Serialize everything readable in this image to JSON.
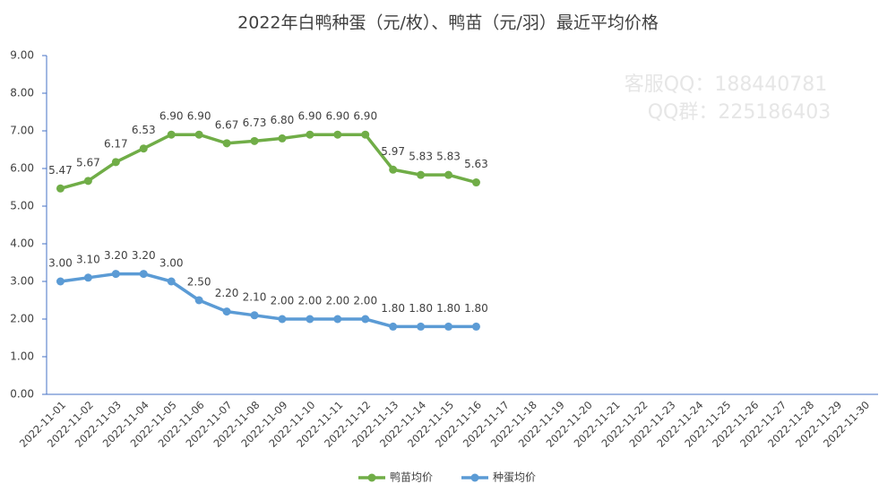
{
  "chart_data": {
    "type": "line",
    "title": "2022年白鸭种蛋（元/枚）、鸭苗（元/羽）最近平均价格",
    "watermarks": [
      "客服QQ：188440781",
      "QQ群：225186403"
    ],
    "categories": [
      "2022-11-01",
      "2022-11-02",
      "2022-11-03",
      "2022-11-04",
      "2022-11-05",
      "2022-11-06",
      "2022-11-07",
      "2022-11-08",
      "2022-11-09",
      "2022-11-10",
      "2022-11-11",
      "2022-11-12",
      "2022-11-13",
      "2022-11-14",
      "2022-11-15",
      "2022-11-16",
      "2022-11-17",
      "2022-11-18",
      "2022-11-19",
      "2022-11-20",
      "2022-11-21",
      "2022-11-22",
      "2022-11-23",
      "2022-11-24",
      "2022-11-25",
      "2022-11-26",
      "2022-11-27",
      "2022-11-28",
      "2022-11-29",
      "2022-11-30"
    ],
    "series": [
      {
        "name": "鸭苗均价",
        "color": "#70ad47",
        "values": [
          5.47,
          5.67,
          6.17,
          6.53,
          6.9,
          6.9,
          6.67,
          6.73,
          6.8,
          6.9,
          6.9,
          6.9,
          5.97,
          5.83,
          5.83,
          5.63,
          null,
          null,
          null,
          null,
          null,
          null,
          null,
          null,
          null,
          null,
          null,
          null,
          null,
          null
        ],
        "value_labels": [
          "5.47",
          "5.67",
          "6.17",
          "6.53",
          "6.90",
          "6.90",
          "6.67",
          "6.73",
          "6.80",
          "6.90",
          "6.90",
          "6.90",
          "5.97",
          "5.83",
          "5.83",
          "5.63",
          null,
          null,
          null,
          null,
          null,
          null,
          null,
          null,
          null,
          null,
          null,
          null,
          null,
          null
        ]
      },
      {
        "name": "种蛋均价",
        "color": "#5b9bd5",
        "values": [
          3.0,
          3.1,
          3.2,
          3.2,
          3.0,
          2.5,
          2.2,
          2.1,
          2.0,
          2.0,
          2.0,
          2.0,
          1.8,
          1.8,
          1.8,
          1.8,
          null,
          null,
          null,
          null,
          null,
          null,
          null,
          null,
          null,
          null,
          null,
          null,
          null,
          null
        ],
        "value_labels": [
          "3.00",
          "3.10",
          "3.20",
          "3.20",
          "3.00",
          "2.50",
          "2.20",
          "2.10",
          "2.00",
          "2.00",
          "2.00",
          "2.00",
          "1.80",
          "1.80",
          "1.80",
          "1.80",
          null,
          null,
          null,
          null,
          null,
          null,
          null,
          null,
          null,
          null,
          null,
          null,
          null,
          null
        ]
      }
    ],
    "ylim": [
      0,
      9
    ],
    "yticks": [
      {
        "value": 0,
        "label": "0.00"
      },
      {
        "value": 1,
        "label": "1.00"
      },
      {
        "value": 2,
        "label": "2.00"
      },
      {
        "value": 3,
        "label": "3.00"
      },
      {
        "value": 4,
        "label": "4.00"
      },
      {
        "value": 5,
        "label": "5.00"
      },
      {
        "value": 6,
        "label": "6.00"
      },
      {
        "value": 7,
        "label": "7.00"
      },
      {
        "value": 8,
        "label": "8.00"
      },
      {
        "value": 9,
        "label": "9.00"
      }
    ],
    "grid": false,
    "legend": "bottom"
  }
}
